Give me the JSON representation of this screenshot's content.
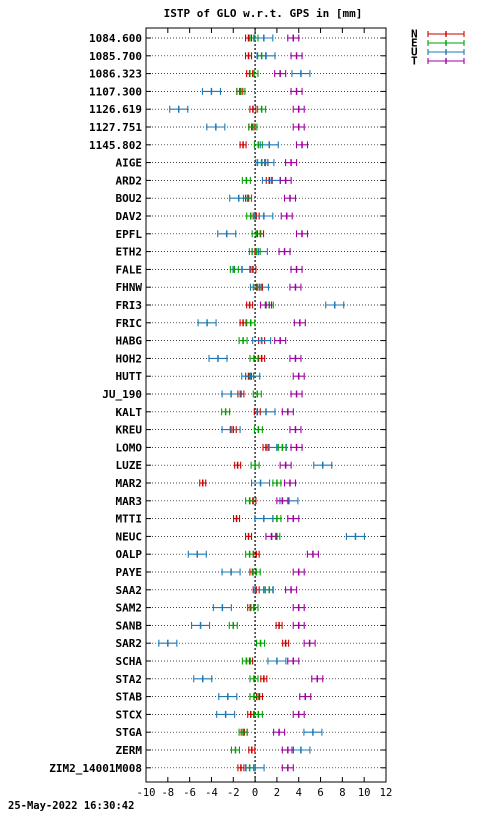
{
  "chart_data": {
    "type": "scatter",
    "title": "ISTP of GLO w.r.t. GPS in [mm]",
    "xlabel": "",
    "ylabel": "",
    "xlim": [
      -10,
      12
    ],
    "xticks": [
      "-10",
      "-8",
      "-6",
      "-4",
      "-2",
      "0",
      "2",
      "4",
      "6",
      "8",
      "10",
      "12"
    ],
    "grid": "horizontal dotted",
    "legend_position": "top-right",
    "timestamp": "25-May-2022 16:30:42",
    "colors": {
      "N": "#cc0000",
      "E": "#00a000",
      "U": "#1f78b4",
      "T": "#a000a0"
    },
    "series": [
      {
        "name": "N",
        "color": "#cc0000"
      },
      {
        "name": "E",
        "color": "#00a000"
      },
      {
        "name": "U",
        "color": "#1f78b4"
      },
      {
        "name": "T",
        "color": "#a000a0"
      }
    ],
    "stations": [
      {
        "name": "1084.600",
        "N": -0.6,
        "E": -0.1,
        "U": 0.8,
        "T": 3.5
      },
      {
        "name": "1085.700",
        "N": -0.6,
        "E": 0.6,
        "U": 1.0,
        "T": 3.8
      },
      {
        "name": "1086.323",
        "N": -0.5,
        "E": -0.1,
        "U": 4.2,
        "T": 2.3
      },
      {
        "name": "1107.300",
        "N": -1.4,
        "E": -1.3,
        "U": -4.0,
        "T": 3.8
      },
      {
        "name": "1126.619",
        "N": -0.2,
        "E": 0.6,
        "U": -7.0,
        "T": 4.0
      },
      {
        "name": "1127.751",
        "N": -0.3,
        "E": -0.2,
        "U": -3.6,
        "T": 4.0
      },
      {
        "name": "1145.802",
        "N": -1.1,
        "E": 0.3,
        "U": 1.3,
        "T": 4.3
      },
      {
        "name": "AIGE",
        "N": 0.9,
        "E": 0.6,
        "U": 0.9,
        "T": 3.3
      },
      {
        "name": "ARD2",
        "N": 1.3,
        "E": -0.8,
        "U": 1.5,
        "T": 2.8
      },
      {
        "name": "BOU2",
        "N": -0.6,
        "E": -0.7,
        "U": -1.5,
        "T": 3.2
      },
      {
        "name": "DAV2",
        "N": 0.1,
        "E": -0.4,
        "U": 0.8,
        "T": 2.9
      },
      {
        "name": "EPFL",
        "N": 0.5,
        "E": 0.1,
        "U": -2.6,
        "T": 4.3
      },
      {
        "name": "ETH2",
        "N": 0.0,
        "E": 0.1,
        "U": 0.3,
        "T": 2.7
      },
      {
        "name": "FALE",
        "N": -0.2,
        "E": -1.9,
        "U": -1.2,
        "T": 3.8
      },
      {
        "name": "FHNW",
        "N": 0.4,
        "E": 0.2,
        "U": 0.4,
        "T": 3.7
      },
      {
        "name": "FRI3",
        "N": -0.5,
        "E": 1.3,
        "U": 7.3,
        "T": 1.0
      },
      {
        "name": "FRIC",
        "N": -1.1,
        "E": -0.4,
        "U": -4.4,
        "T": 4.1
      },
      {
        "name": "HABG",
        "N": 0.6,
        "E": -1.1,
        "U": 0.6,
        "T": 2.3
      },
      {
        "name": "HOH2",
        "N": 0.6,
        "E": -0.1,
        "U": -3.4,
        "T": 3.7
      },
      {
        "name": "HUTT",
        "N": -0.6,
        "E": -0.5,
        "U": -0.4,
        "T": 4.0
      },
      {
        "name": "JU_190",
        "N": -1.3,
        "E": 0.2,
        "U": -2.2,
        "T": 3.8
      },
      {
        "name": "KALT",
        "N": 0.2,
        "E": -2.7,
        "U": 1.0,
        "T": 3.0
      },
      {
        "name": "KREU",
        "N": -2.0,
        "E": 0.3,
        "U": -2.2,
        "T": 3.7
      },
      {
        "name": "LOMO",
        "N": 1.0,
        "E": 2.5,
        "U": 2.0,
        "T": 3.8
      },
      {
        "name": "LUZE",
        "N": -1.6,
        "E": 0.0,
        "U": 6.2,
        "T": 2.8
      },
      {
        "name": "MAR2",
        "N": -4.8,
        "E": 2.0,
        "U": 0.5,
        "T": 3.2
      },
      {
        "name": "MAR3",
        "N": -0.2,
        "E": -0.5,
        "U": 3.1,
        "T": 2.5
      },
      {
        "name": "MTTI",
        "N": -1.7,
        "E": 2.0,
        "U": 0.8,
        "T": 3.5
      },
      {
        "name": "NEUC",
        "N": -0.6,
        "E": 1.9,
        "U": 9.2,
        "T": 1.5
      },
      {
        "name": "OALP",
        "N": 0.1,
        "E": -0.5,
        "U": -5.3,
        "T": 5.3
      },
      {
        "name": "PAYE",
        "N": -0.2,
        "E": 0.1,
        "U": -2.2,
        "T": 4.0
      },
      {
        "name": "SAA2",
        "N": 0.1,
        "E": 1.3,
        "U": 0.8,
        "T": 3.3
      },
      {
        "name": "SAM2",
        "N": -0.4,
        "E": -0.1,
        "U": -3.0,
        "T": 4.0
      },
      {
        "name": "SANB",
        "N": 2.2,
        "E": -2.0,
        "U": -5.0,
        "T": 4.0
      },
      {
        "name": "SAR2",
        "N": 2.8,
        "E": 0.5,
        "U": -8.0,
        "T": 5.0
      },
      {
        "name": "SCHA",
        "N": -0.5,
        "E": -0.8,
        "U": 2.0,
        "T": 3.5
      },
      {
        "name": "STA2",
        "N": 0.8,
        "E": -0.1,
        "U": -4.8,
        "T": 5.7
      },
      {
        "name": "STAB",
        "N": 0.4,
        "E": -0.1,
        "U": -2.5,
        "T": 4.6
      },
      {
        "name": "STCX",
        "N": -0.4,
        "E": 0.3,
        "U": -2.7,
        "T": 4.0
      },
      {
        "name": "STGA",
        "N": -1.0,
        "E": -1.1,
        "U": 5.3,
        "T": 2.2
      },
      {
        "name": "ZERM",
        "N": -0.3,
        "E": -1.8,
        "U": 4.2,
        "T": 3.0
      },
      {
        "name": "ZIM2_14001M008",
        "N": -1.3,
        "E": -0.5,
        "U": 0.0,
        "T": 3.0
      }
    ]
  }
}
